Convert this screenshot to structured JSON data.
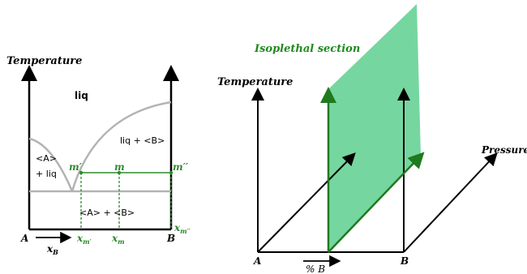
{
  "left_diagram": {
    "y_axis_label": "Temperature",
    "region_liq": "liq",
    "region_liq_b": "liq + <B>",
    "region_a_liq_1": "<A>",
    "region_a_liq_2": "+ liq",
    "region_solid": "<A> + <B>",
    "point_m_prime": "m′",
    "point_m": "m",
    "point_m_dprime": "m′′",
    "label_A": "A",
    "label_B": "B",
    "x_axis_label": "x",
    "x_axis_label_sub": "B",
    "x_m_prime": "x",
    "x_m_prime_sub": "m′",
    "x_m": "x",
    "x_m_sub": "m",
    "x_m_dprime": "x",
    "x_m_dprime_sub": "m′′",
    "colors": {
      "axis": "#000000",
      "curve": "#b3b3b3",
      "green": "#2e8b2e"
    }
  },
  "right_diagram": {
    "section_title": "Isoplethal section",
    "temperature_label": "Temperature",
    "pressure_label": "Pressure",
    "label_A": "A",
    "label_B": "B",
    "composition_label": "% B",
    "colors": {
      "plane": "#6fd49b",
      "edge": "#1f7a1f",
      "title": "#1f8a1f"
    }
  }
}
